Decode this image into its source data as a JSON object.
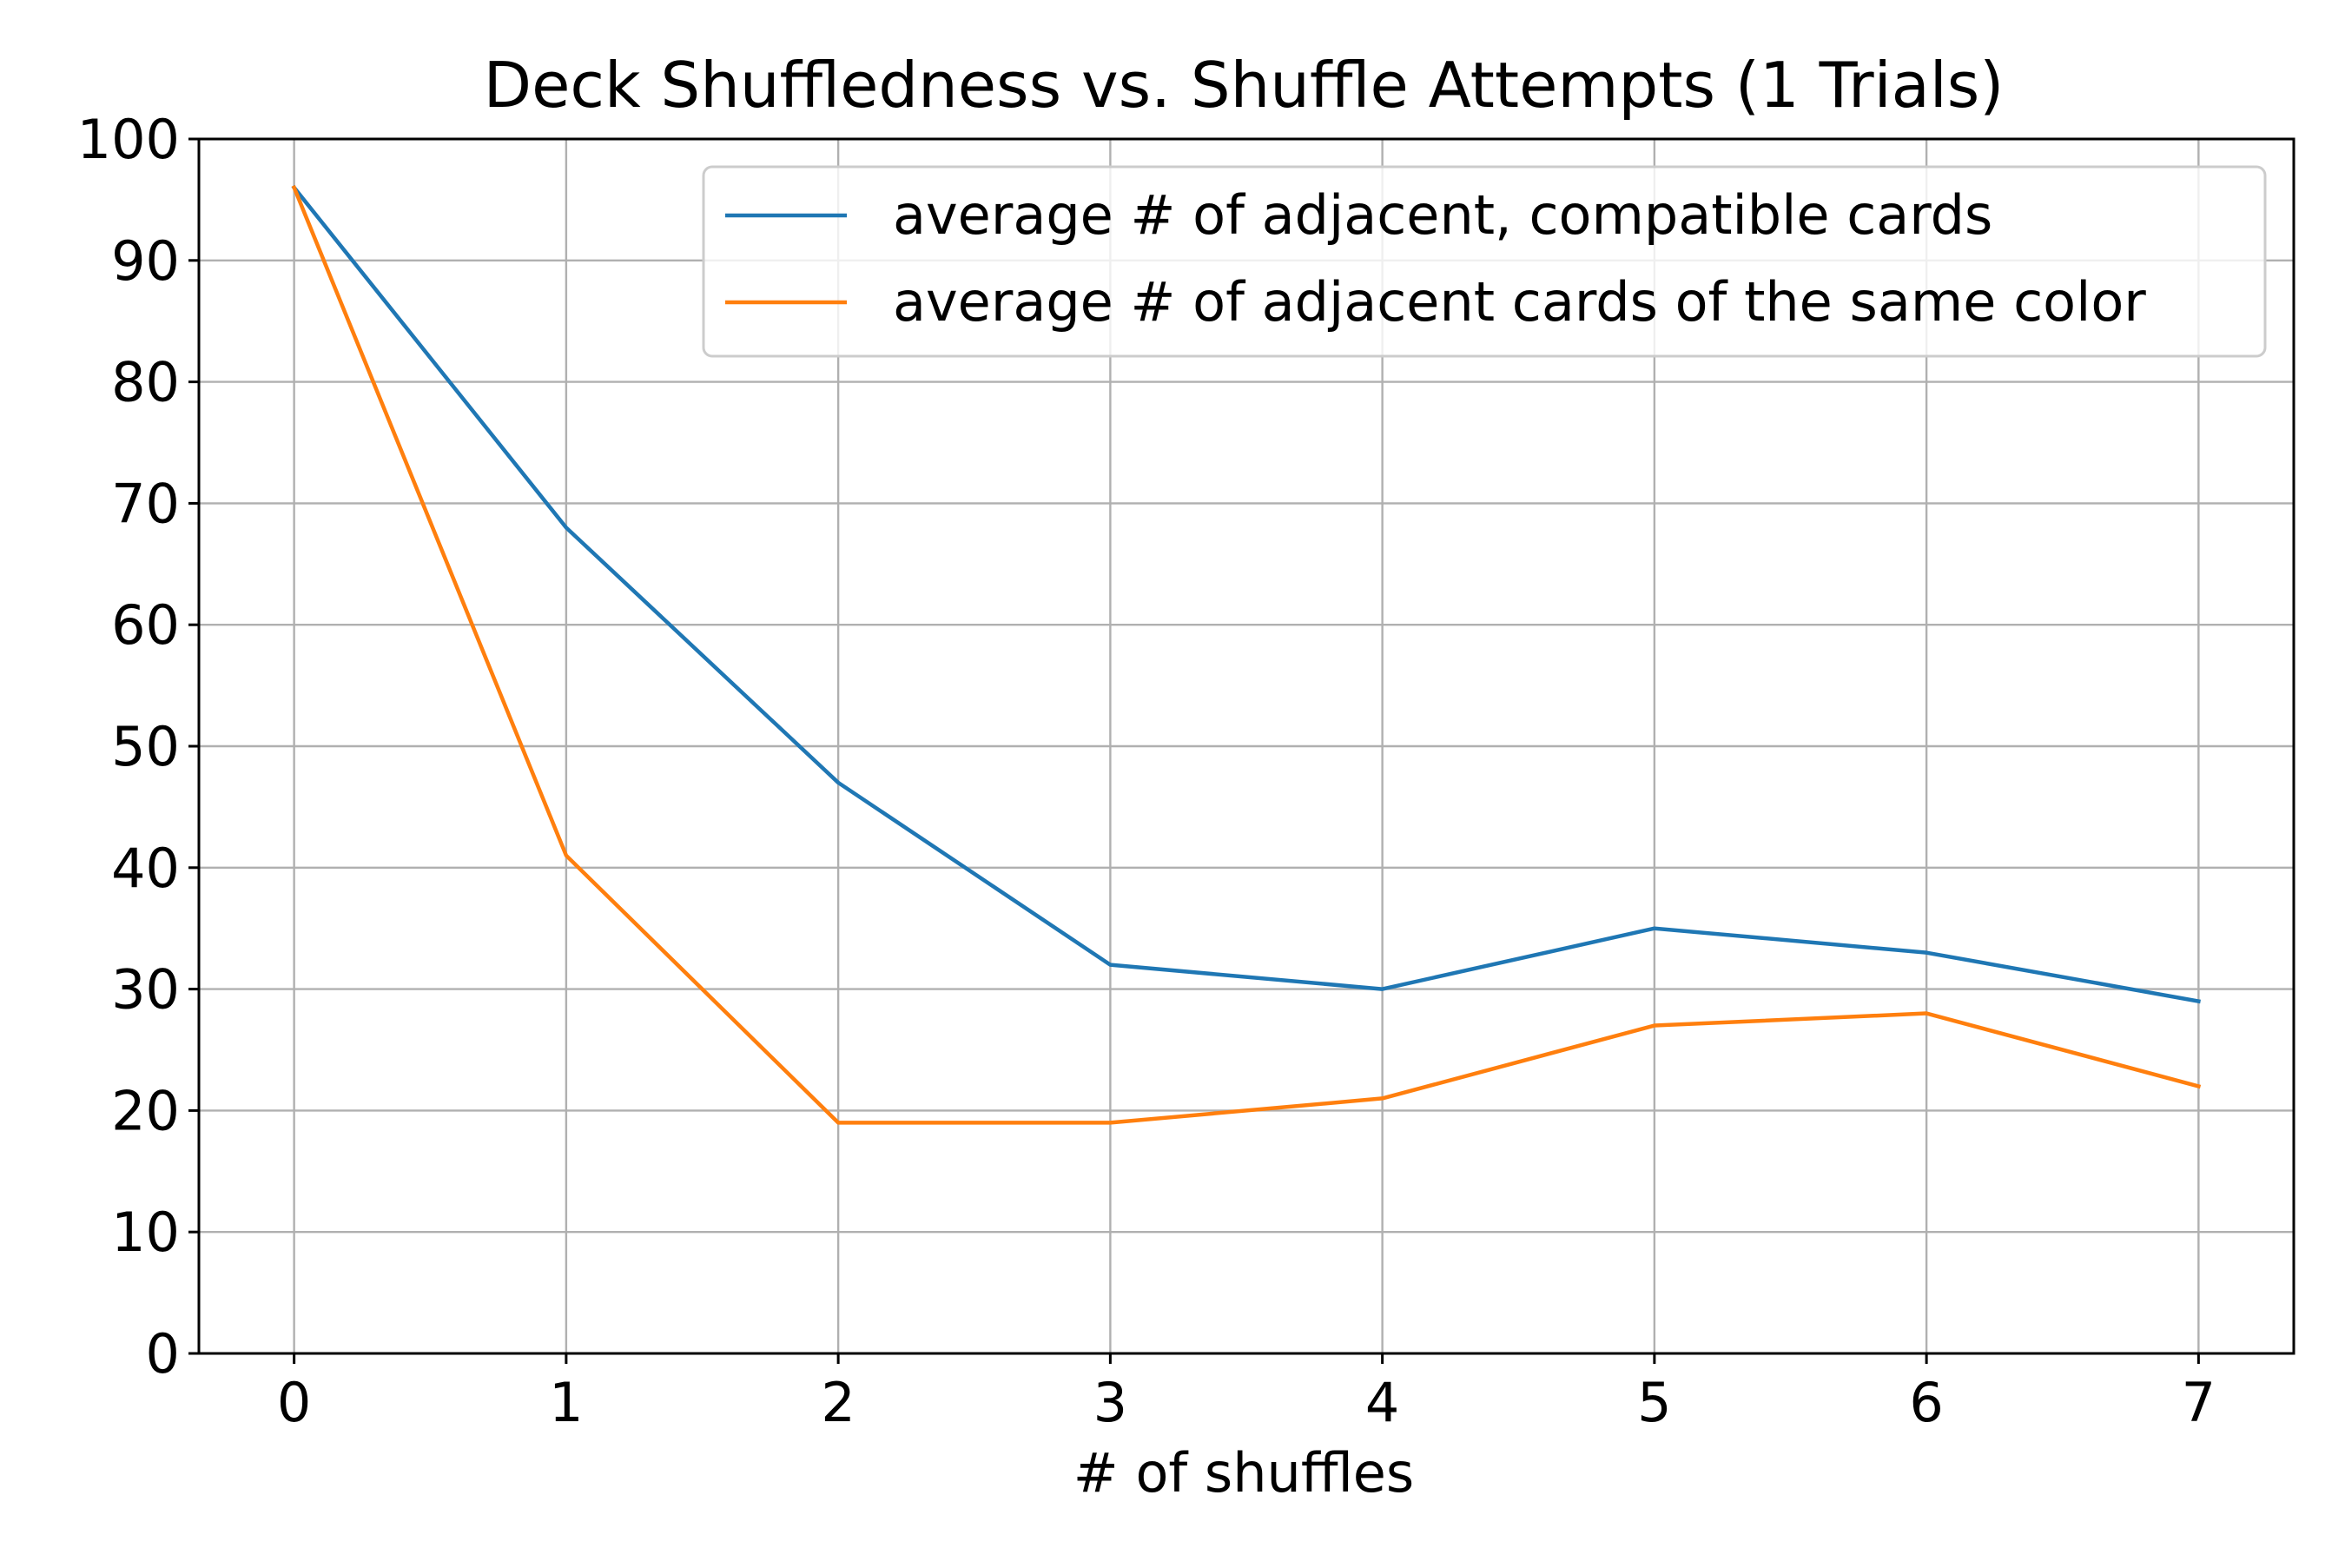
{
  "chart_data": {
    "type": "line",
    "title": "Deck Shuffledness vs. Shuffle Attempts (1 Trials)",
    "xlabel": "# of shuffles",
    "ylabel": "",
    "x": [
      0,
      1,
      2,
      3,
      4,
      5,
      6,
      7
    ],
    "xticks": [
      "0",
      "1",
      "2",
      "3",
      "4",
      "5",
      "6",
      "7"
    ],
    "yticks": [
      "0",
      "10",
      "20",
      "30",
      "40",
      "50",
      "60",
      "70",
      "80",
      "90",
      "100"
    ],
    "xlim": [
      -0.35,
      7.35
    ],
    "ylim": [
      0,
      100
    ],
    "grid": true,
    "legend_position": "upper right",
    "series": [
      {
        "name": "average # of adjacent, compatible cards",
        "color": "#1f77b4",
        "values": [
          96,
          68,
          47,
          32,
          30,
          35,
          33,
          29
        ]
      },
      {
        "name": "average # of adjacent cards of the same color",
        "color": "#ff7f0e",
        "values": [
          96,
          41,
          19,
          19,
          21,
          27,
          28,
          22
        ]
      }
    ]
  }
}
